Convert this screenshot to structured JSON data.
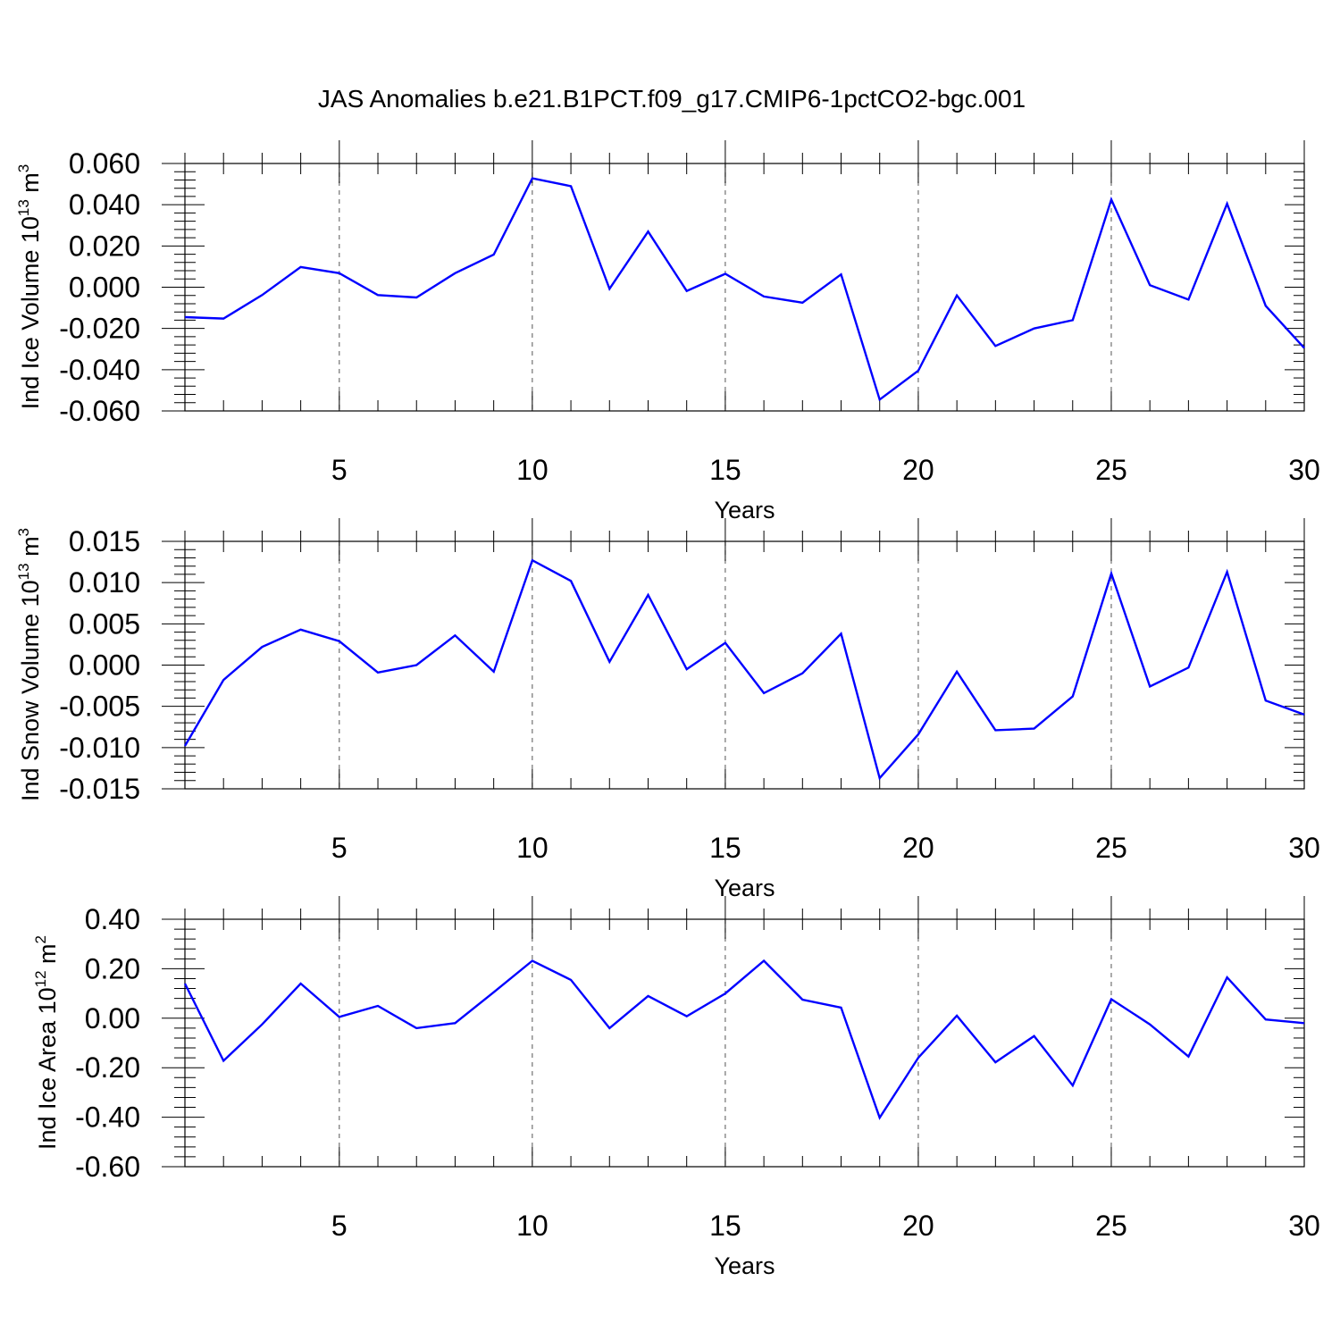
{
  "title": "JAS Anomalies b.e21.B1PCT.f09_g17.CMIP6-1pctCO2-bgc.001",
  "colors": {
    "line": "#0000ff",
    "axis": "#000000",
    "grid": "#555555"
  },
  "chart_data": [
    {
      "type": "line",
      "ylabel": "Ind Ice Volume 10",
      "ylabel_exp": "13",
      "ylabel_unit": " m",
      "ylabel_unit_exp": "3",
      "xlabel": "Years",
      "xlim": [
        1,
        30
      ],
      "ylim": [
        -0.06,
        0.06
      ],
      "xticks": [
        5,
        10,
        15,
        20,
        25,
        30
      ],
      "xtick_labels": [
        "5",
        "10",
        "15",
        "20",
        "25",
        "30"
      ],
      "yticks": [
        -0.06,
        -0.04,
        -0.02,
        0.0,
        0.02,
        0.04,
        0.06
      ],
      "ytick_labels": [
        "-0.060",
        "-0.040",
        "-0.020",
        "0.000",
        "0.020",
        "0.040",
        "0.060"
      ],
      "grid_x": [
        5,
        10,
        15,
        20,
        25
      ],
      "x": [
        1,
        2,
        3,
        4,
        5,
        6,
        7,
        8,
        9,
        10,
        11,
        12,
        13,
        14,
        15,
        16,
        17,
        18,
        19,
        20,
        21,
        22,
        23,
        24,
        25,
        26,
        27,
        28,
        29,
        30
      ],
      "values": [
        -0.0145,
        -0.0152,
        -0.0038,
        0.0098,
        0.0068,
        -0.0038,
        -0.005,
        0.0068,
        0.0158,
        0.0528,
        0.049,
        -0.0008,
        0.027,
        -0.0018,
        0.0065,
        -0.0045,
        -0.0075,
        0.0062,
        -0.0545,
        -0.0405,
        -0.004,
        -0.0285,
        -0.02,
        -0.016,
        0.0425,
        0.001,
        -0.006,
        0.0405,
        -0.009,
        -0.0295
      ]
    },
    {
      "type": "line",
      "ylabel": "Ind Snow Volume 10",
      "ylabel_exp": "13",
      "ylabel_unit": " m",
      "ylabel_unit_exp": "3",
      "xlabel": "Years",
      "xlim": [
        1,
        30
      ],
      "ylim": [
        -0.015,
        0.015
      ],
      "xticks": [
        5,
        10,
        15,
        20,
        25,
        30
      ],
      "xtick_labels": [
        "5",
        "10",
        "15",
        "20",
        "25",
        "30"
      ],
      "yticks": [
        -0.015,
        -0.01,
        -0.005,
        0.0,
        0.005,
        0.01,
        0.015
      ],
      "ytick_labels": [
        "-0.015",
        "-0.010",
        "-0.005",
        "0.000",
        "0.005",
        "0.010",
        "0.015"
      ],
      "grid_x": [
        5,
        10,
        15,
        20,
        25
      ],
      "x": [
        1,
        2,
        3,
        4,
        5,
        6,
        7,
        8,
        9,
        10,
        11,
        12,
        13,
        14,
        15,
        16,
        17,
        18,
        19,
        20,
        21,
        22,
        23,
        24,
        25,
        26,
        27,
        28,
        29,
        30
      ],
      "values": [
        -0.0098,
        -0.0018,
        0.0022,
        0.0043,
        0.0029,
        -0.0009,
        0.0,
        0.0036,
        -0.0008,
        0.0127,
        0.0102,
        0.0004,
        0.0085,
        -0.0005,
        0.0027,
        -0.0034,
        -0.001,
        0.0038,
        -0.0137,
        -0.0084,
        -0.0008,
        -0.0079,
        -0.0077,
        -0.0038,
        0.0111,
        -0.0026,
        -0.0003,
        0.0113,
        -0.0043,
        -0.006
      ]
    },
    {
      "type": "line",
      "ylabel": "Ind Ice Area 10",
      "ylabel_exp": "12",
      "ylabel_unit": " m",
      "ylabel_unit_exp": "2",
      "xlabel": "Years",
      "xlim": [
        1,
        30
      ],
      "ylim": [
        -0.6,
        0.4
      ],
      "xticks": [
        5,
        10,
        15,
        20,
        25,
        30
      ],
      "xtick_labels": [
        "5",
        "10",
        "15",
        "20",
        "25",
        "30"
      ],
      "yticks": [
        -0.6,
        -0.4,
        -0.2,
        0.0,
        0.2,
        0.4
      ],
      "ytick_labels": [
        "-0.60",
        "-0.40",
        "-0.20",
        "0.00",
        "0.20",
        "0.40"
      ],
      "grid_x": [
        5,
        10,
        15,
        20,
        25
      ],
      "x": [
        1,
        2,
        3,
        4,
        5,
        6,
        7,
        8,
        9,
        10,
        11,
        12,
        13,
        14,
        15,
        16,
        17,
        18,
        19,
        20,
        21,
        22,
        23,
        24,
        25,
        26,
        27,
        28,
        29,
        30
      ],
      "values": [
        0.14,
        -0.172,
        -0.025,
        0.14,
        0.005,
        0.05,
        -0.04,
        -0.02,
        0.105,
        0.232,
        0.155,
        -0.04,
        0.09,
        0.008,
        0.1,
        0.232,
        0.075,
        0.043,
        -0.402,
        -0.16,
        0.01,
        -0.178,
        -0.072,
        -0.272,
        0.077,
        -0.025,
        -0.155,
        0.165,
        -0.005,
        -0.02
      ]
    }
  ]
}
